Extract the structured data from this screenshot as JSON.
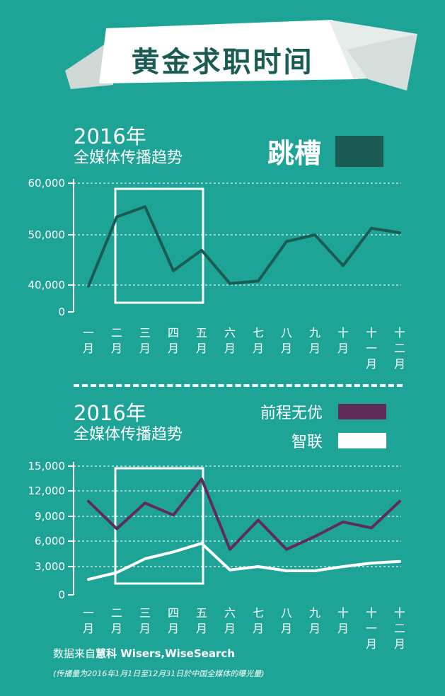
{
  "banner": {
    "title": "黄金求职时间"
  },
  "charts": [
    {
      "year": "2016年",
      "subtitle": "全媒体传播趋势",
      "legend": [
        {
          "name": "跳槽",
          "color": "#1a5c54"
        }
      ]
    },
    {
      "year": "2016年",
      "subtitle": "全媒体传播趋势",
      "legend": [
        {
          "name": "前程无优",
          "color": "#5f2c58"
        },
        {
          "name": "智联",
          "color": "#ffffff"
        }
      ]
    }
  ],
  "footer": {
    "prefix": "数据来自",
    "brand": "慧科",
    "source": " Wisers,WiseSearch",
    "note": "(传播量为2016年1月1日至12月31日於中国全媒体的曝光量)"
  },
  "chart_data": [
    {
      "type": "line",
      "categories": [
        "一月",
        "二月",
        "三月",
        "四月",
        "五月",
        "六月",
        "七月",
        "八月",
        "九月",
        "十月",
        "十一月",
        "十二月"
      ],
      "tick_labels": [
        "60,000",
        "50,000",
        "40,000",
        "0"
      ],
      "y_ticks": [
        60000,
        50000,
        40000,
        0
      ],
      "series": [
        {
          "name": "跳槽",
          "color": "#1a5c54",
          "values": [
            40000,
            53500,
            55500,
            43000,
            47000,
            40500,
            41000,
            48700,
            50000,
            44000,
            51300,
            50400
          ]
        }
      ],
      "highlight": {
        "from": "二月",
        "to": "五月"
      },
      "grid": true
    },
    {
      "type": "line",
      "categories": [
        "一月",
        "二月",
        "三月",
        "四月",
        "五月",
        "六月",
        "七月",
        "八月",
        "九月",
        "十月",
        "十一月",
        "十二月"
      ],
      "tick_labels": [
        "15,000",
        "12,000",
        "9,000",
        "6,000",
        "3,000",
        "0"
      ],
      "y_ticks": [
        15000,
        12000,
        9000,
        6000,
        3000,
        0
      ],
      "ylim": [
        0,
        15000
      ],
      "series": [
        {
          "name": "前程无优",
          "color": "#5f2c58",
          "values": [
            10900,
            7700,
            10700,
            9300,
            13500,
            5300,
            8700,
            5300,
            6800,
            8500,
            7800,
            10900
          ]
        },
        {
          "name": "智联",
          "color": "#ffffff",
          "values": [
            1800,
            2600,
            4200,
            5000,
            6000,
            2900,
            3300,
            2800,
            2800,
            3300,
            3700,
            3900
          ]
        }
      ],
      "highlight": {
        "from": "二月",
        "to": "五月"
      },
      "grid": true
    }
  ]
}
